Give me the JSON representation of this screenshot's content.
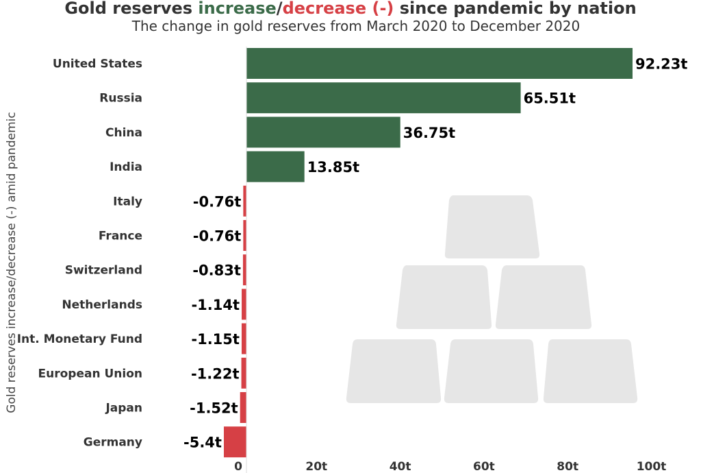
{
  "chart_data": {
    "type": "bar",
    "orientation": "horizontal",
    "title_parts": [
      "Gold reserves ",
      "increase",
      "/",
      "decrease (-)",
      " since pandemic by nation"
    ],
    "subtitle": "The change in gold reserves from March 2020 to December 2020",
    "ylabel": "Gold reserves increase/decrease (-) amid pandemic",
    "xlabel": "",
    "categories": [
      "United States",
      "Russia",
      "China",
      "India",
      "Italy",
      "France",
      "Switzerland",
      "Netherlands",
      "Int. Monetary Fund",
      "European Union",
      "Japan",
      "Germany"
    ],
    "values": [
      92.23,
      65.51,
      36.75,
      13.85,
      -0.76,
      -0.76,
      -0.83,
      -1.14,
      -1.15,
      -1.22,
      -1.52,
      -5.4
    ],
    "data_labels": [
      "92.23t",
      "65.51t",
      "36.75t",
      "13.85t",
      "-0.76t",
      "-0.76t",
      "-0.83t",
      "-1.14t",
      "-1.15t",
      "-1.22t",
      "-1.52t",
      "-5.4t"
    ],
    "xticks": [
      0,
      20,
      40,
      60,
      80,
      100
    ],
    "xtick_labels": [
      "0",
      "20t",
      "40t",
      "60t",
      "80t",
      "100t"
    ],
    "xlim": [
      -5.4,
      100
    ],
    "colors": {
      "increase": "#3b6b49",
      "decrease": "#d64045"
    },
    "grid": false
  }
}
